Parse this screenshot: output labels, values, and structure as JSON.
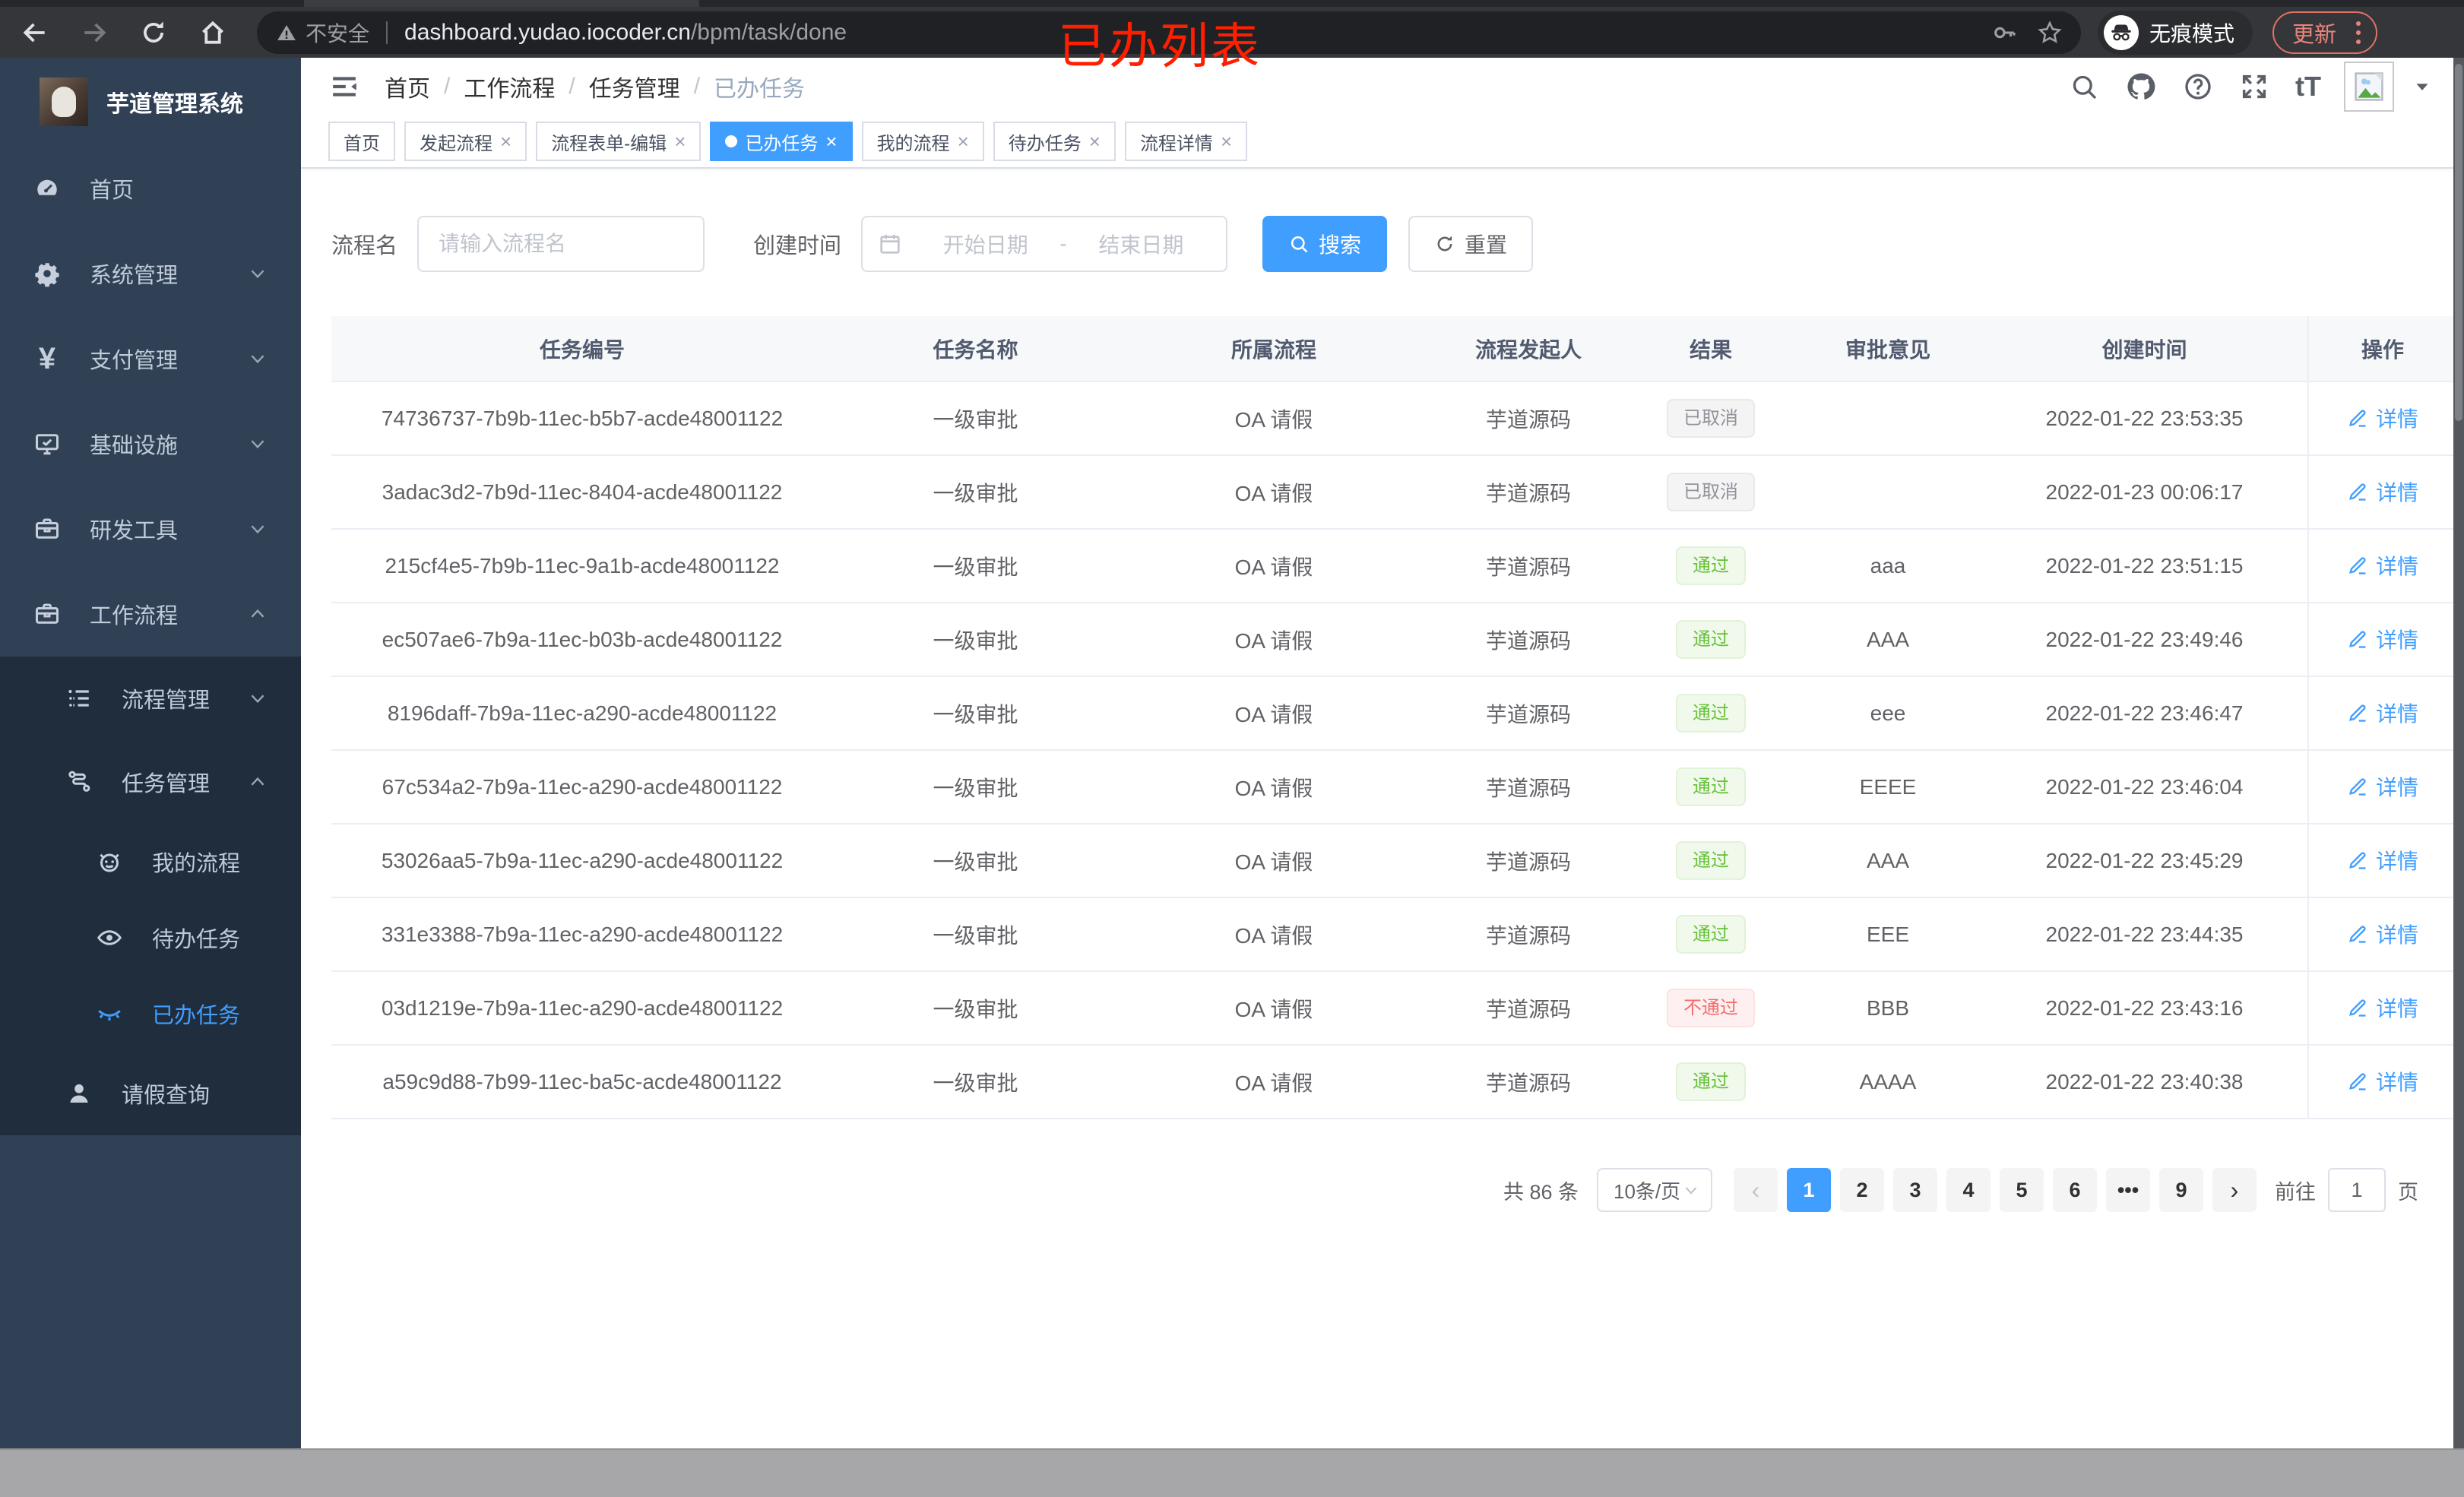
{
  "browser": {
    "security_warning": "不安全",
    "url_host": "dashboard.yudao.iocoder.cn",
    "url_path": "/bpm/task/done",
    "incognito_label": "无痕模式",
    "update_label": "更新"
  },
  "annotation": {
    "text": "已办列表",
    "color": "#ff1f00"
  },
  "sidebar": {
    "title": "芋道管理系统",
    "items": [
      {
        "label": "首页",
        "icon": "dashboard-icon",
        "depth": 1,
        "arrow": "",
        "active": false,
        "section": "top"
      },
      {
        "label": "系统管理",
        "icon": "gear-icon",
        "depth": 1,
        "arrow": "down",
        "active": false,
        "section": "top"
      },
      {
        "label": "支付管理",
        "icon": "yen-icon",
        "depth": 1,
        "arrow": "down",
        "active": false,
        "section": "top"
      },
      {
        "label": "基础设施",
        "icon": "monitor-icon",
        "depth": 1,
        "arrow": "down",
        "active": false,
        "section": "top"
      },
      {
        "label": "研发工具",
        "icon": "briefcase-icon",
        "depth": 1,
        "arrow": "down",
        "active": false,
        "section": "top"
      },
      {
        "label": "工作流程",
        "icon": "briefcase-icon",
        "depth": 1,
        "arrow": "up",
        "active": false,
        "section": "top"
      },
      {
        "label": "流程管理",
        "icon": "list-tree-icon",
        "depth": 2,
        "arrow": "down",
        "active": false,
        "section": "sub"
      },
      {
        "label": "任务管理",
        "icon": "flow-icon",
        "depth": 2,
        "arrow": "up",
        "active": false,
        "section": "sub"
      },
      {
        "label": "我的流程",
        "icon": "robot-icon",
        "depth": 3,
        "arrow": "",
        "active": false,
        "section": "sub"
      },
      {
        "label": "待办任务",
        "icon": "eye-icon",
        "depth": 3,
        "arrow": "",
        "active": false,
        "section": "sub"
      },
      {
        "label": "已办任务",
        "icon": "eye-closed-icon",
        "depth": 3,
        "arrow": "",
        "active": true,
        "section": "sub"
      },
      {
        "label": "请假查询",
        "icon": "user-icon",
        "depth": 2,
        "arrow": "",
        "active": false,
        "section": "sub"
      }
    ]
  },
  "breadcrumb": {
    "separator": "/",
    "items": [
      "首页",
      "工作流程",
      "任务管理",
      "已办任务"
    ]
  },
  "header_icons": [
    "search-icon",
    "github-icon",
    "help-icon",
    "fullscreen-icon",
    "font-size-icon"
  ],
  "tabs": [
    {
      "label": "首页",
      "closable": false,
      "active": false
    },
    {
      "label": "发起流程",
      "closable": true,
      "active": false
    },
    {
      "label": "流程表单-编辑",
      "closable": true,
      "active": false
    },
    {
      "label": "已办任务",
      "closable": true,
      "active": true
    },
    {
      "label": "我的流程",
      "closable": true,
      "active": false
    },
    {
      "label": "待办任务",
      "closable": true,
      "active": false
    },
    {
      "label": "流程详情",
      "closable": true,
      "active": false
    }
  ],
  "filters": {
    "name_label": "流程名",
    "name_placeholder": "请输入流程名",
    "time_label": "创建时间",
    "start_placeholder": "开始日期",
    "range_separator": "-",
    "end_placeholder": "结束日期",
    "search_label": "搜索",
    "reset_label": "重置"
  },
  "table": {
    "columns": [
      "任务编号",
      "任务名称",
      "所属流程",
      "流程发起人",
      "结果",
      "审批意见",
      "创建时间",
      "操作"
    ],
    "detail_label": "详情",
    "rows": [
      {
        "id": "74736737-7b9b-11ec-b5b7-acde48001122",
        "name": "一级审批",
        "process": "OA 请假",
        "starter": "芋道源码",
        "result": "已取消",
        "result_type": "info",
        "opinion": "",
        "created": "2022-01-22 23:53:35"
      },
      {
        "id": "3adac3d2-7b9d-11ec-8404-acde48001122",
        "name": "一级审批",
        "process": "OA 请假",
        "starter": "芋道源码",
        "result": "已取消",
        "result_type": "info",
        "opinion": "",
        "created": "2022-01-23 00:06:17"
      },
      {
        "id": "215cf4e5-7b9b-11ec-9a1b-acde48001122",
        "name": "一级审批",
        "process": "OA 请假",
        "starter": "芋道源码",
        "result": "通过",
        "result_type": "success",
        "opinion": "aaa",
        "created": "2022-01-22 23:51:15"
      },
      {
        "id": "ec507ae6-7b9a-11ec-b03b-acde48001122",
        "name": "一级审批",
        "process": "OA 请假",
        "starter": "芋道源码",
        "result": "通过",
        "result_type": "success",
        "opinion": "AAA",
        "created": "2022-01-22 23:49:46"
      },
      {
        "id": "8196daff-7b9a-11ec-a290-acde48001122",
        "name": "一级审批",
        "process": "OA 请假",
        "starter": "芋道源码",
        "result": "通过",
        "result_type": "success",
        "opinion": "eee",
        "created": "2022-01-22 23:46:47"
      },
      {
        "id": "67c534a2-7b9a-11ec-a290-acde48001122",
        "name": "一级审批",
        "process": "OA 请假",
        "starter": "芋道源码",
        "result": "通过",
        "result_type": "success",
        "opinion": "EEEE",
        "created": "2022-01-22 23:46:04"
      },
      {
        "id": "53026aa5-7b9a-11ec-a290-acde48001122",
        "name": "一级审批",
        "process": "OA 请假",
        "starter": "芋道源码",
        "result": "通过",
        "result_type": "success",
        "opinion": "AAA",
        "created": "2022-01-22 23:45:29"
      },
      {
        "id": "331e3388-7b9a-11ec-a290-acde48001122",
        "name": "一级审批",
        "process": "OA 请假",
        "starter": "芋道源码",
        "result": "通过",
        "result_type": "success",
        "opinion": "EEE",
        "created": "2022-01-22 23:44:35"
      },
      {
        "id": "03d1219e-7b9a-11ec-a290-acde48001122",
        "name": "一级审批",
        "process": "OA 请假",
        "starter": "芋道源码",
        "result": "不通过",
        "result_type": "danger",
        "opinion": "BBB",
        "created": "2022-01-22 23:43:16"
      },
      {
        "id": "a59c9d88-7b99-11ec-ba5c-acde48001122",
        "name": "一级审批",
        "process": "OA 请假",
        "starter": "芋道源码",
        "result": "通过",
        "result_type": "success",
        "opinion": "AAAA",
        "created": "2022-01-22 23:40:38"
      }
    ]
  },
  "pagination": {
    "total_text": "共 86 条",
    "page_size": "10条/页",
    "pages": [
      "1",
      "2",
      "3",
      "4",
      "5",
      "6",
      "•••",
      "9"
    ],
    "active_page": "1",
    "goto_label": "前往",
    "goto_value": "1",
    "page_unit": "页"
  },
  "colors": {
    "accent": "#409eff",
    "success": "#67c23a",
    "danger": "#f56c6c",
    "info": "#909399",
    "sidebar_bg": "#304156",
    "submenu_bg": "#1f2d3d",
    "update_red": "#e8847a",
    "annotation_red": "#ff1f00"
  }
}
